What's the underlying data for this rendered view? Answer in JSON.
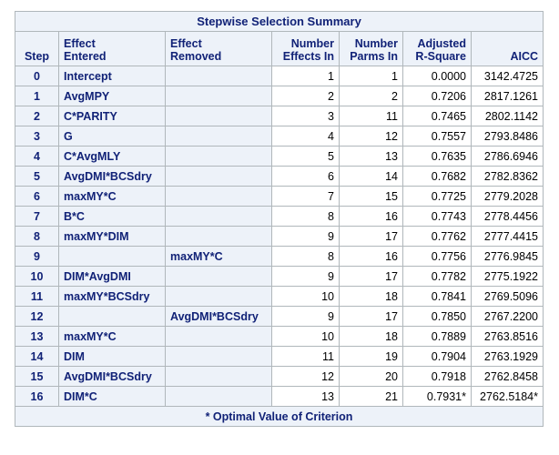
{
  "title": "Stepwise Selection Summary",
  "headers": {
    "step": "Step",
    "entered_1": "Effect",
    "entered_2": "Entered",
    "removed_1": "Effect",
    "removed_2": "Removed",
    "effects_1": "Number",
    "effects_2": "Effects In",
    "parms_1": "Number",
    "parms_2": "Parms In",
    "adjrsq_1": "Adjusted",
    "adjrsq_2": "R-Square",
    "aicc": "AICC"
  },
  "rows": [
    {
      "step": "0",
      "entered": "Intercept",
      "removed": "",
      "effects": "1",
      "parms": "1",
      "adjrsq": "0.0000",
      "aicc": "3142.4725"
    },
    {
      "step": "1",
      "entered": "AvgMPY",
      "removed": "",
      "effects": "2",
      "parms": "2",
      "adjrsq": "0.7206",
      "aicc": "2817.1261"
    },
    {
      "step": "2",
      "entered": "C*PARITY",
      "removed": "",
      "effects": "3",
      "parms": "11",
      "adjrsq": "0.7465",
      "aicc": "2802.1142"
    },
    {
      "step": "3",
      "entered": "G",
      "removed": "",
      "effects": "4",
      "parms": "12",
      "adjrsq": "0.7557",
      "aicc": "2793.8486"
    },
    {
      "step": "4",
      "entered": "C*AvgMLY",
      "removed": "",
      "effects": "5",
      "parms": "13",
      "adjrsq": "0.7635",
      "aicc": "2786.6946"
    },
    {
      "step": "5",
      "entered": "AvgDMI*BCSdry",
      "removed": "",
      "effects": "6",
      "parms": "14",
      "adjrsq": "0.7682",
      "aicc": "2782.8362"
    },
    {
      "step": "6",
      "entered": "maxMY*C",
      "removed": "",
      "effects": "7",
      "parms": "15",
      "adjrsq": "0.7725",
      "aicc": "2779.2028"
    },
    {
      "step": "7",
      "entered": "B*C",
      "removed": "",
      "effects": "8",
      "parms": "16",
      "adjrsq": "0.7743",
      "aicc": "2778.4456"
    },
    {
      "step": "8",
      "entered": "maxMY*DIM",
      "removed": "",
      "effects": "9",
      "parms": "17",
      "adjrsq": "0.7762",
      "aicc": "2777.4415"
    },
    {
      "step": "9",
      "entered": "",
      "removed": "maxMY*C",
      "effects": "8",
      "parms": "16",
      "adjrsq": "0.7756",
      "aicc": "2776.9845"
    },
    {
      "step": "10",
      "entered": "DIM*AvgDMI",
      "removed": "",
      "effects": "9",
      "parms": "17",
      "adjrsq": "0.7782",
      "aicc": "2775.1922"
    },
    {
      "step": "11",
      "entered": "maxMY*BCSdry",
      "removed": "",
      "effects": "10",
      "parms": "18",
      "adjrsq": "0.7841",
      "aicc": "2769.5096"
    },
    {
      "step": "12",
      "entered": "",
      "removed": "AvgDMI*BCSdry",
      "effects": "9",
      "parms": "17",
      "adjrsq": "0.7850",
      "aicc": "2767.2200"
    },
    {
      "step": "13",
      "entered": "maxMY*C",
      "removed": "",
      "effects": "10",
      "parms": "18",
      "adjrsq": "0.7889",
      "aicc": "2763.8516"
    },
    {
      "step": "14",
      "entered": "DIM",
      "removed": "",
      "effects": "11",
      "parms": "19",
      "adjrsq": "0.7904",
      "aicc": "2763.1929"
    },
    {
      "step": "15",
      "entered": "AvgDMI*BCSdry",
      "removed": "",
      "effects": "12",
      "parms": "20",
      "adjrsq": "0.7918",
      "aicc": "2762.8458"
    },
    {
      "step": "16",
      "entered": "DIM*C",
      "removed": "",
      "effects": "13",
      "parms": "21",
      "adjrsq": "0.7931*",
      "aicc": "2762.5184*"
    }
  ],
  "footnote": "* Optimal Value of Criterion",
  "colors": {
    "header_bg": "#edf2f9",
    "header_text": "#112277",
    "border": "#b0b7bb"
  }
}
